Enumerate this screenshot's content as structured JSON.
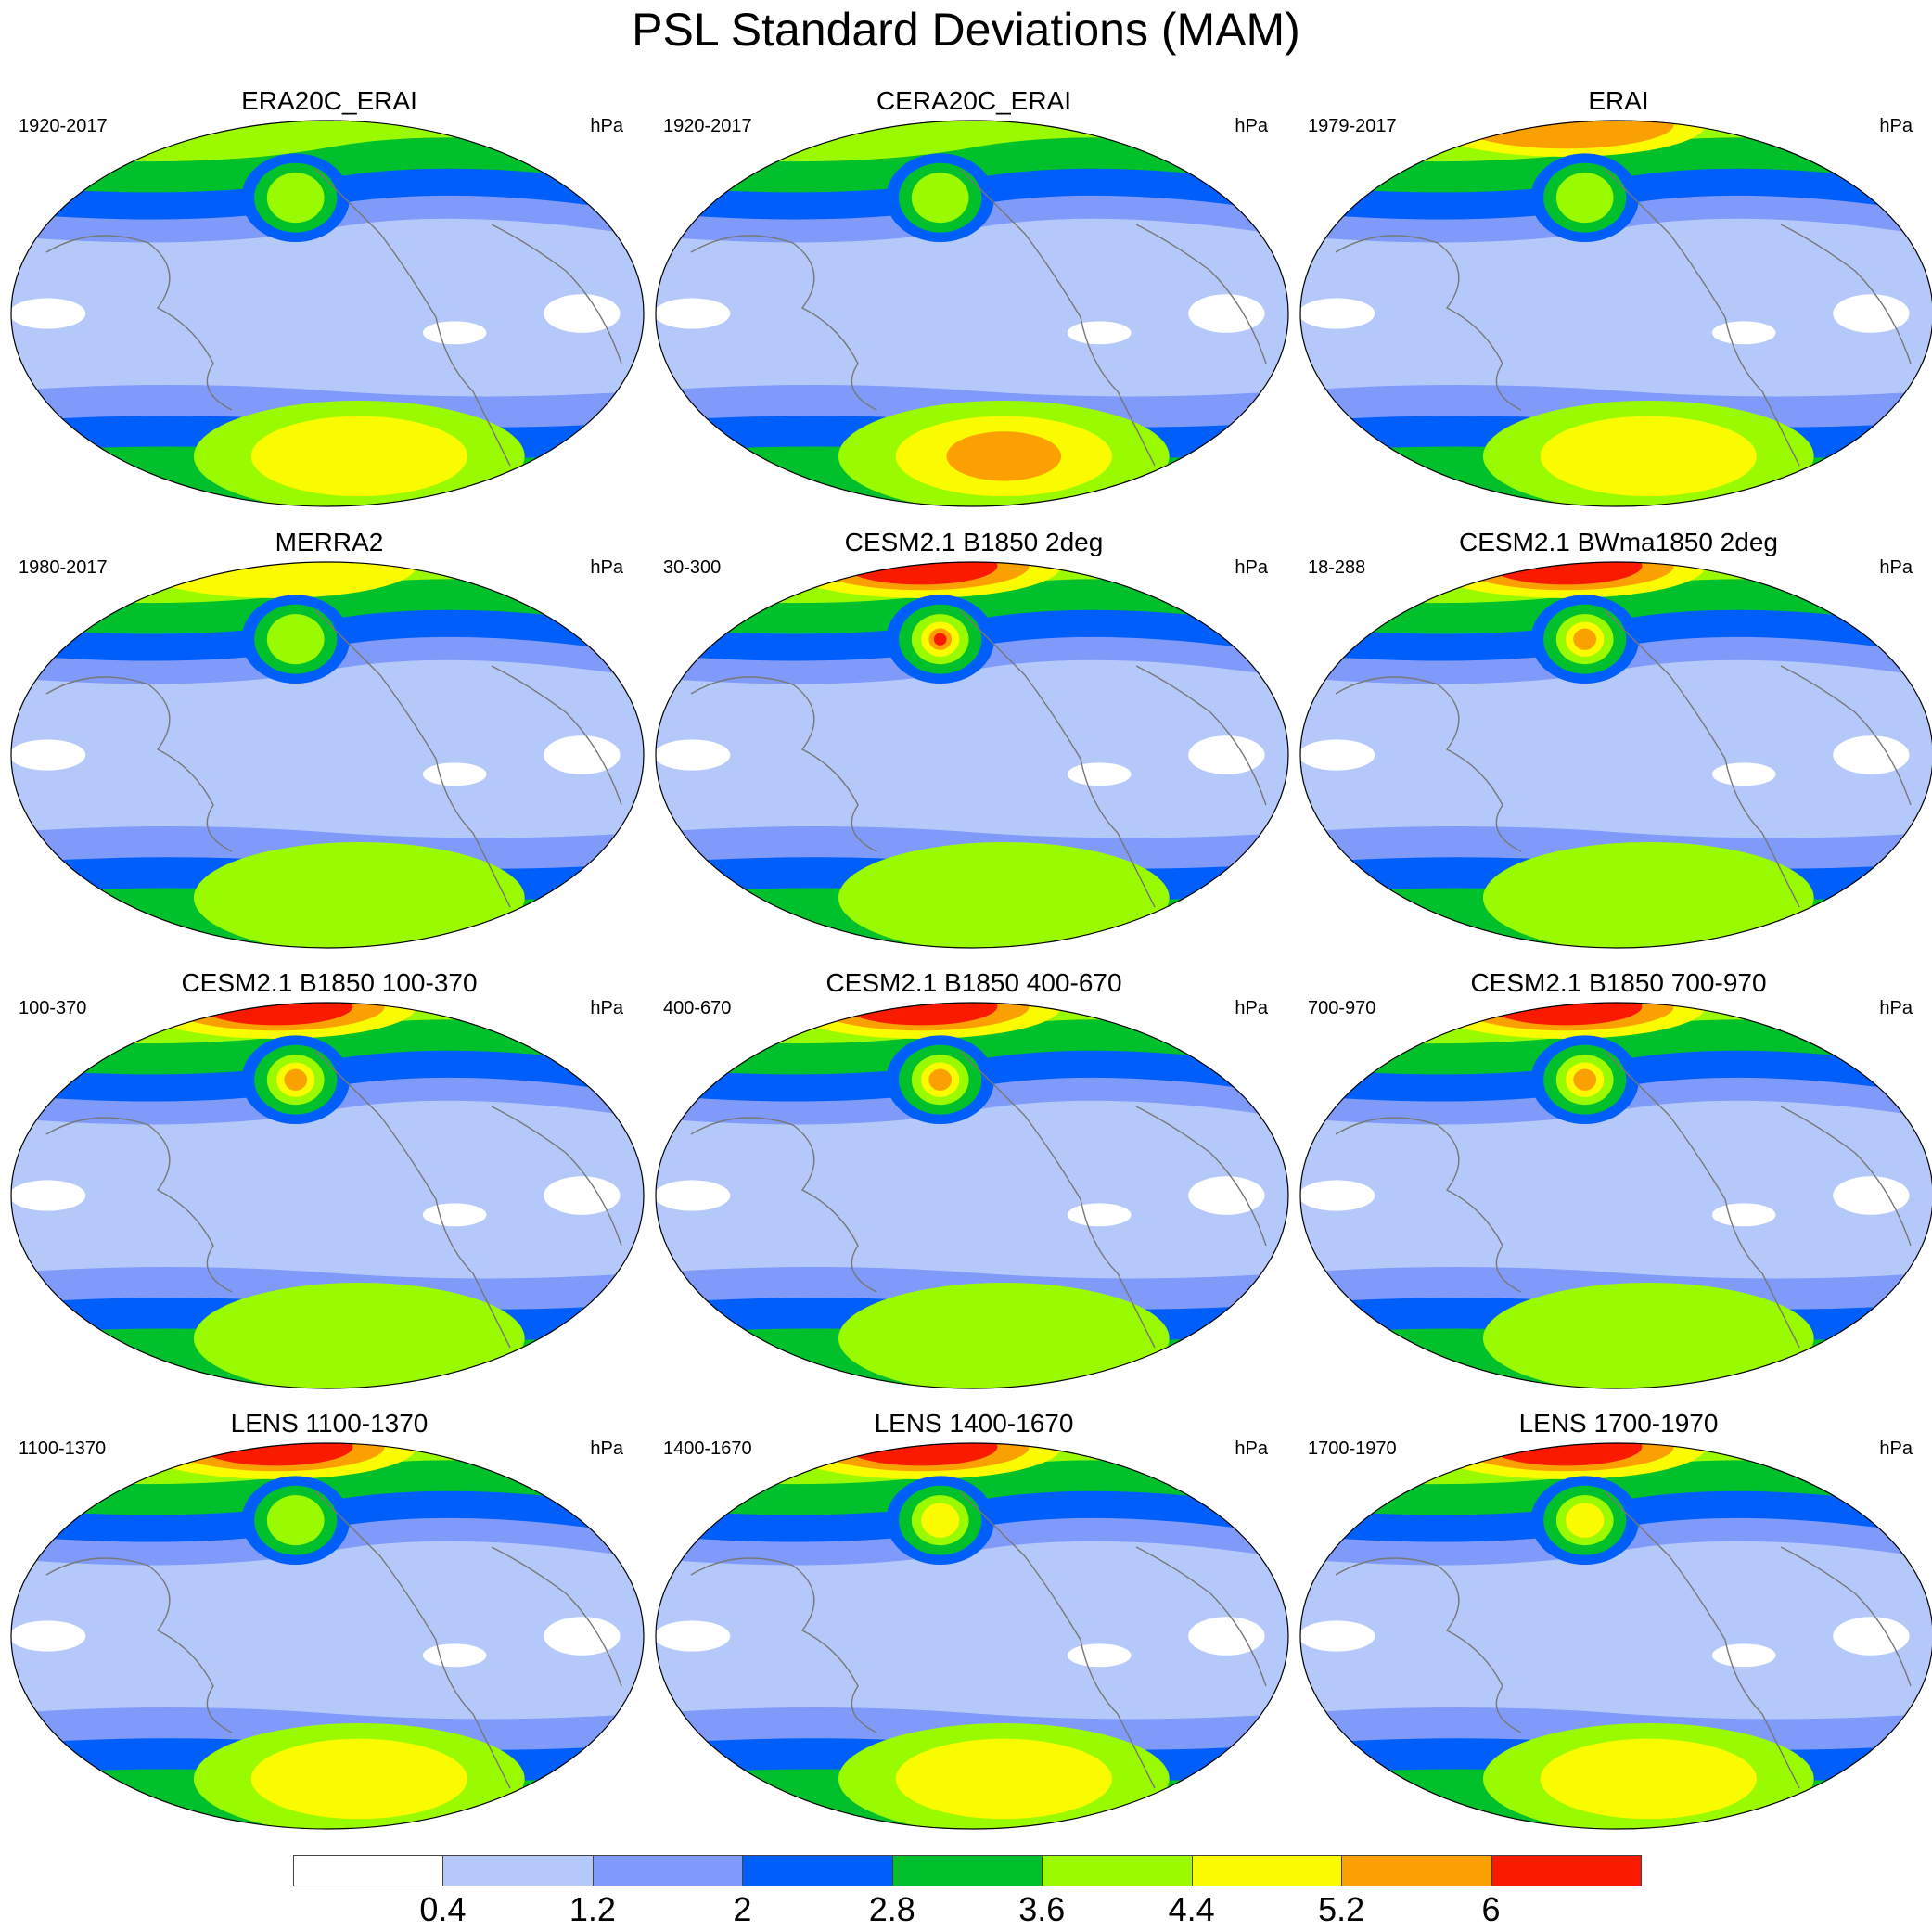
{
  "title": "PSL Standard Deviations (MAM)",
  "panels": [
    {
      "title": "ERA20C_ERAI",
      "years": "1920-2017",
      "units": "hPa",
      "nh_max": 4.4,
      "sh_max": 5.4,
      "aleut": 4.2
    },
    {
      "title": "CERA20C_ERAI",
      "years": "1920-2017",
      "units": "hPa",
      "nh_max": 4.4,
      "sh_max": 6.2,
      "aleut": 4.1
    },
    {
      "title": "ERAI",
      "years": "1979-2017",
      "units": "hPa",
      "nh_max": 5.6,
      "sh_max": 5.3,
      "aleut": 4.0
    },
    {
      "title": "MERRA2",
      "years": "1980-2017",
      "units": "hPa",
      "nh_max": 4.6,
      "sh_max": 4.6,
      "aleut": 4.0
    },
    {
      "title": "CESM2.1 B1850 2deg",
      "years": "30-300",
      "units": "hPa",
      "nh_max": 6.6,
      "sh_max": 4.5,
      "aleut": 6.2
    },
    {
      "title": "CESM2.1 BWma1850 2deg",
      "years": "18-288",
      "units": "hPa",
      "nh_max": 6.4,
      "sh_max": 4.5,
      "aleut": 5.6
    },
    {
      "title": "CESM2.1 B1850 100-370",
      "years": "100-370",
      "units": "hPa",
      "nh_max": 6.6,
      "sh_max": 4.6,
      "aleut": 5.6
    },
    {
      "title": "CESM2.1 B1850 400-670",
      "years": "400-670",
      "units": "hPa",
      "nh_max": 6.6,
      "sh_max": 4.5,
      "aleut": 5.4
    },
    {
      "title": "CESM2.1 B1850 700-970",
      "years": "700-970",
      "units": "hPa",
      "nh_max": 6.6,
      "sh_max": 4.5,
      "aleut": 5.5
    },
    {
      "title": "LENS 1100-1370",
      "years": "1100-1370",
      "units": "hPa",
      "nh_max": 6.3,
      "sh_max": 5.0,
      "aleut": 4.5
    },
    {
      "title": "LENS 1400-1670",
      "years": "1400-1670",
      "units": "hPa",
      "nh_max": 6.2,
      "sh_max": 5.0,
      "aleut": 5.0
    },
    {
      "title": "LENS 1700-1970",
      "years": "1700-1970",
      "units": "hPa",
      "nh_max": 6.2,
      "sh_max": 5.0,
      "aleut": 5.0
    }
  ],
  "colorbar": {
    "levels": [
      "0.4",
      "1.2",
      "2",
      "2.8",
      "3.6",
      "4.4",
      "5.2",
      "6"
    ],
    "colors": [
      "#ffffff",
      "#b4c8fa",
      "#7f9af9",
      "#005efa",
      "#00c02c",
      "#9afa00",
      "#fafa00",
      "#faa000",
      "#fa1a00"
    ]
  }
}
